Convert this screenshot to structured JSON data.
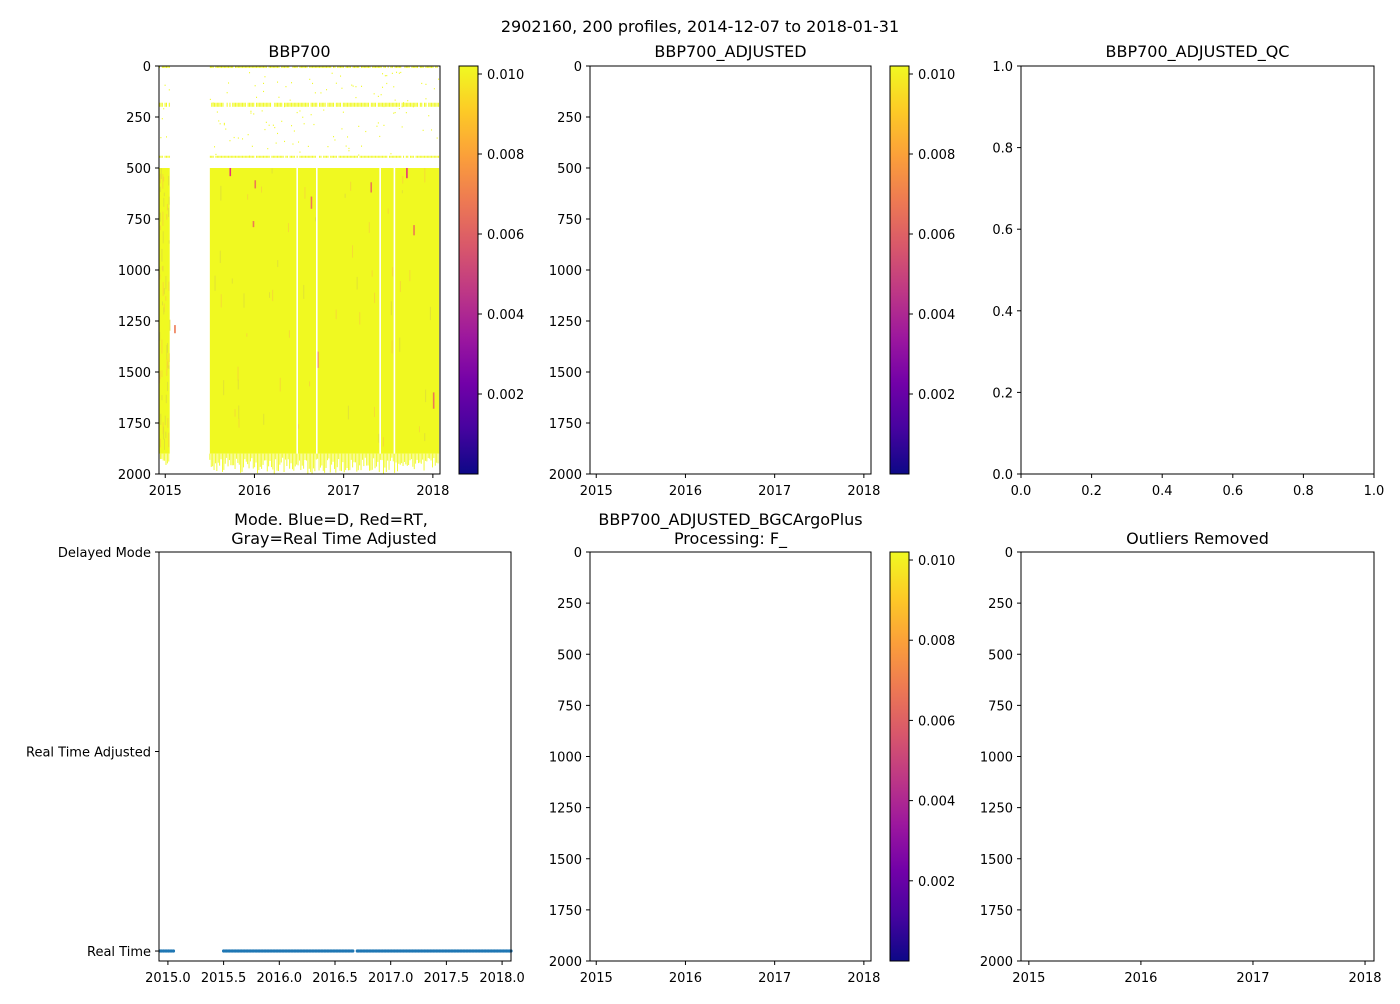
{
  "suptitle": "2902160, 200 profiles, 2014-12-07 to 2018-01-31",
  "colors": {
    "plasma": [
      "#0d0887",
      "#46039f",
      "#7201a8",
      "#9c179e",
      "#bd3786",
      "#d8576b",
      "#ed7953",
      "#fb9f3a",
      "#fdca26",
      "#f0f921"
    ],
    "mode_marker": "#1f77b4",
    "highlight": "#e8327c"
  },
  "chart_data": [
    {
      "id": "bbp700",
      "type": "heatmap",
      "title": "BBP700",
      "x_ticks": [
        "2015",
        "2016",
        "2017",
        "2018"
      ],
      "x_tick_values": [
        2015,
        2016,
        2017,
        2018
      ],
      "xlim": [
        2014.93,
        2018.08
      ],
      "y_ticks": [
        "0",
        "250",
        "500",
        "750",
        "1000",
        "1250",
        "1500",
        "1750",
        "2000"
      ],
      "y_tick_values": [
        0,
        250,
        500,
        750,
        1000,
        1250,
        1500,
        1750,
        2000
      ],
      "ylim": [
        2000,
        0
      ],
      "colorbar": {
        "ticks": [
          "0.002",
          "0.004",
          "0.006",
          "0.008",
          "0.010"
        ],
        "tick_values": [
          0.002,
          0.004,
          0.006,
          0.008,
          0.01
        ],
        "range": [
          0.0,
          0.0102
        ]
      },
      "profile_periods": [
        [
          2014.93,
          2015.05
        ],
        [
          2015.5,
          2018.07
        ]
      ],
      "dense_depth_range": [
        500,
        1900
      ],
      "sparse_bands": [
        [
          0,
          10
        ],
        [
          180,
          200
        ],
        [
          440,
          450
        ]
      ],
      "high_value_streaks": [
        {
          "x": 2015.72,
          "y": [
            500,
            540
          ]
        },
        {
          "x": 2015.98,
          "y": [
            760,
            790
          ]
        },
        {
          "x": 2016.0,
          "y": [
            560,
            600
          ]
        },
        {
          "x": 2016.63,
          "y": [
            640,
            700
          ]
        },
        {
          "x": 2016.7,
          "y": [
            1400,
            1480
          ]
        },
        {
          "x": 2017.3,
          "y": [
            570,
            620
          ]
        },
        {
          "x": 2017.7,
          "y": [
            500,
            550
          ]
        },
        {
          "x": 2017.78,
          "y": [
            780,
            830
          ]
        },
        {
          "x": 2018.0,
          "y": [
            1600,
            1680
          ]
        },
        {
          "x": 2015.1,
          "y": [
            1270,
            1310
          ]
        }
      ],
      "empty_gap": [
        2015.05,
        2015.5
      ]
    },
    {
      "id": "bbp700_adjusted",
      "type": "heatmap",
      "title": "BBP700_ADJUSTED",
      "x_ticks": [
        "2015",
        "2016",
        "2017",
        "2018"
      ],
      "x_tick_values": [
        2015,
        2016,
        2017,
        2018
      ],
      "xlim": [
        2014.93,
        2018.08
      ],
      "y_ticks": [
        "0",
        "250",
        "500",
        "750",
        "1000",
        "1250",
        "1500",
        "1750",
        "2000"
      ],
      "y_tick_values": [
        0,
        250,
        500,
        750,
        1000,
        1250,
        1500,
        1750,
        2000
      ],
      "ylim": [
        2000,
        0
      ],
      "colorbar": {
        "ticks": [
          "0.002",
          "0.004",
          "0.006",
          "0.008",
          "0.010"
        ],
        "tick_values": [
          0.002,
          0.004,
          0.006,
          0.008,
          0.01
        ],
        "range": [
          0.0,
          0.0102
        ]
      },
      "values": []
    },
    {
      "id": "bbp700_adjusted_qc",
      "type": "scatter",
      "title": "BBP700_ADJUSTED_QC",
      "x_ticks": [
        "0.0",
        "0.2",
        "0.4",
        "0.6",
        "0.8",
        "1.0"
      ],
      "x_tick_values": [
        0,
        0.2,
        0.4,
        0.6,
        0.8,
        1.0
      ],
      "xlim": [
        0,
        1
      ],
      "y_ticks": [
        "0.0",
        "0.2",
        "0.4",
        "0.6",
        "0.8",
        "1.0"
      ],
      "y_tick_values": [
        0,
        0.2,
        0.4,
        0.6,
        0.8,
        1.0
      ],
      "ylim": [
        0,
        1
      ],
      "values": []
    },
    {
      "id": "mode",
      "type": "scatter",
      "title_lines": [
        "Mode. Blue=D, Red=RT,",
        "Gray=Real Time Adjusted"
      ],
      "x_ticks": [
        "2015.0",
        "2015.5",
        "2016.0",
        "2016.5",
        "2017.0",
        "2017.5",
        "2018.0"
      ],
      "x_tick_values": [
        2015.0,
        2015.5,
        2016.0,
        2016.5,
        2017.0,
        2017.5,
        2018.0
      ],
      "xlim": [
        2014.92,
        2018.08
      ],
      "y_ticks": [
        "Real Time",
        "Real Time Adjusted",
        "Delayed Mode"
      ],
      "y_tick_values": [
        0,
        1,
        2
      ],
      "ylim": [
        -0.05,
        2.0
      ],
      "series": [
        {
          "name": "Real Time",
          "y": 0,
          "segments": [
            [
              2014.93,
              2015.05
            ],
            [
              2015.5,
              2016.66
            ],
            [
              2016.7,
              2018.08
            ]
          ],
          "n_points": 200
        }
      ]
    },
    {
      "id": "bgcargoplus",
      "type": "heatmap",
      "title_lines": [
        "BBP700_ADJUSTED_BGCArgoPlus",
        "Processing: F_"
      ],
      "x_ticks": [
        "2015",
        "2016",
        "2017",
        "2018"
      ],
      "x_tick_values": [
        2015,
        2016,
        2017,
        2018
      ],
      "xlim": [
        2014.93,
        2018.08
      ],
      "y_ticks": [
        "0",
        "250",
        "500",
        "750",
        "1000",
        "1250",
        "1500",
        "1750",
        "2000"
      ],
      "y_tick_values": [
        0,
        250,
        500,
        750,
        1000,
        1250,
        1500,
        1750,
        2000
      ],
      "ylim": [
        2000,
        0
      ],
      "colorbar": {
        "ticks": [
          "0.002",
          "0.004",
          "0.006",
          "0.008",
          "0.010"
        ],
        "tick_values": [
          0.002,
          0.004,
          0.006,
          0.008,
          0.01
        ],
        "range": [
          0.0,
          0.0102
        ]
      },
      "values": []
    },
    {
      "id": "outliers",
      "type": "scatter",
      "title": "Outliers Removed",
      "x_ticks": [
        "2015",
        "2016",
        "2017",
        "2018"
      ],
      "x_tick_values": [
        2015,
        2016,
        2017,
        2018
      ],
      "xlim": [
        2014.93,
        2018.08
      ],
      "y_ticks": [
        "0",
        "250",
        "500",
        "750",
        "1000",
        "1250",
        "1500",
        "1750",
        "2000"
      ],
      "y_tick_values": [
        0,
        250,
        500,
        750,
        1000,
        1250,
        1500,
        1750,
        2000
      ],
      "ylim": [
        2000,
        0
      ],
      "values": []
    }
  ]
}
